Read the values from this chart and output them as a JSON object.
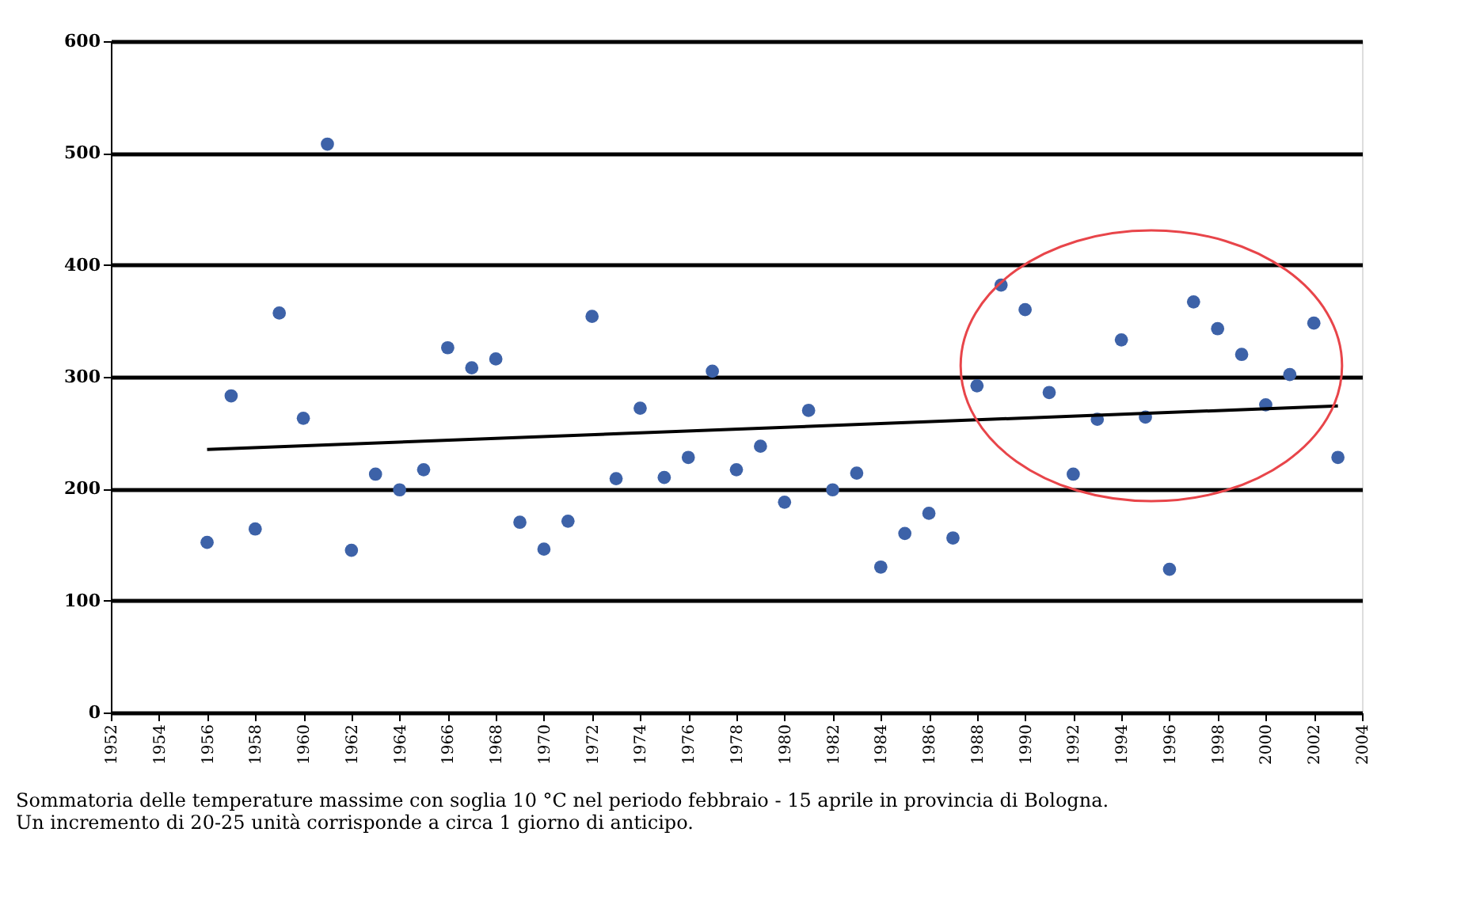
{
  "chart_data": {
    "type": "scatter",
    "annotations": [
      "Sommatoria delle temperature massime con soglia 10 °C nel periodo febbraio - 15 aprile in provincia di Bologna.",
      "Un incremento di 20-25 unità corrisponde a circa 1 giorno di anticipo."
    ],
    "x": [
      1956,
      1957,
      1958,
      1959,
      1960,
      1961,
      1962,
      1963,
      1964,
      1965,
      1966,
      1967,
      1968,
      1969,
      1970,
      1971,
      1972,
      1973,
      1974,
      1975,
      1976,
      1977,
      1978,
      1979,
      1980,
      1981,
      1982,
      1983,
      1984,
      1985,
      1986,
      1987,
      1988,
      1989,
      1990,
      1991,
      1992,
      1993,
      1994,
      1995,
      1996,
      1997,
      1998,
      1999,
      2000,
      2001,
      2002,
      2003
    ],
    "series": [
      {
        "type": "scatter",
        "marker": "circle",
        "color": "#3d62a8",
        "values": [
          152,
          283,
          164,
          357,
          263,
          508,
          145,
          213,
          199,
          217,
          326,
          308,
          316,
          170,
          146,
          171,
          354,
          209,
          272,
          210,
          228,
          305,
          217,
          238,
          188,
          270,
          199,
          214,
          130,
          160,
          178,
          156,
          292,
          382,
          360,
          286,
          213,
          262,
          333,
          264,
          128,
          367,
          343,
          320,
          275,
          302,
          348,
          228
        ]
      },
      {
        "type": "line",
        "marker": "none",
        "color": "#000000",
        "x": [
          1956,
          2003
        ],
        "values": [
          235,
          274
        ]
      }
    ],
    "xlim": [
      1952,
      2004
    ],
    "xticks": [
      1952,
      1954,
      1956,
      1958,
      1960,
      1962,
      1964,
      1966,
      1968,
      1970,
      1972,
      1974,
      1976,
      1978,
      1980,
      1982,
      1984,
      1986,
      1988,
      1990,
      1992,
      1994,
      1996,
      1998,
      2000,
      2002,
      2004
    ],
    "ylim": [
      0,
      600
    ],
    "yticks": [
      0,
      100,
      200,
      300,
      400,
      500,
      600
    ],
    "grid": "y",
    "line_style": "solid"
  }
}
